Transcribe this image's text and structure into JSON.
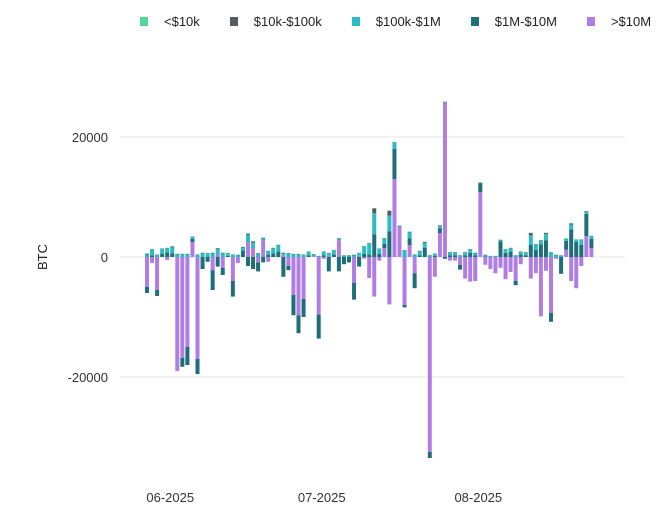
{
  "chart_data": {
    "type": "bar",
    "stacked": true,
    "title": "",
    "xlabel": "",
    "ylabel": "BTC",
    "ylim": [
      -35000,
      27000
    ],
    "yticks": [
      20000,
      0,
      -20000
    ],
    "ytick_labels": [
      "20000",
      "0",
      "-20000"
    ],
    "xticks": [
      "2025-06-01",
      "2025-07-01",
      "2025-08-01"
    ],
    "xtick_labels": [
      "06-2025",
      "07-2025",
      "08-2025"
    ],
    "grid": "horizontal",
    "legend_position": "top",
    "x": [
      "2025-05-27",
      "2025-05-28",
      "2025-05-29",
      "2025-05-30",
      "2025-05-31",
      "2025-06-01",
      "2025-06-02",
      "2025-06-03",
      "2025-06-04",
      "2025-06-05",
      "2025-06-06",
      "2025-06-07",
      "2025-06-08",
      "2025-06-09",
      "2025-06-10",
      "2025-06-11",
      "2025-06-12",
      "2025-06-13",
      "2025-06-14",
      "2025-06-15",
      "2025-06-16",
      "2025-06-17",
      "2025-06-18",
      "2025-06-19",
      "2025-06-20",
      "2025-06-21",
      "2025-06-22",
      "2025-06-23",
      "2025-06-24",
      "2025-06-25",
      "2025-06-26",
      "2025-06-27",
      "2025-06-28",
      "2025-06-29",
      "2025-06-30",
      "2025-07-01",
      "2025-07-02",
      "2025-07-03",
      "2025-07-04",
      "2025-07-05",
      "2025-07-06",
      "2025-07-07",
      "2025-07-08",
      "2025-07-09",
      "2025-07-10",
      "2025-07-11",
      "2025-07-12",
      "2025-07-13",
      "2025-07-14",
      "2025-07-15",
      "2025-07-16",
      "2025-07-17",
      "2025-07-18",
      "2025-07-19",
      "2025-07-20",
      "2025-07-21",
      "2025-07-22",
      "2025-07-23",
      "2025-07-24",
      "2025-07-25",
      "2025-07-26",
      "2025-07-27",
      "2025-07-28",
      "2025-07-29",
      "2025-07-30",
      "2025-07-31",
      "2025-08-01",
      "2025-08-02",
      "2025-08-03",
      "2025-08-04",
      "2025-08-05",
      "2025-08-06",
      "2025-08-07",
      "2025-08-08",
      "2025-08-09",
      "2025-08-10",
      "2025-08-11",
      "2025-08-12",
      "2025-08-13",
      "2025-08-14",
      "2025-08-15",
      "2025-08-16",
      "2025-08-17",
      "2025-08-18",
      "2025-08-19",
      "2025-08-20",
      "2025-08-21",
      "2025-08-22",
      "2025-08-23"
    ],
    "series": [
      {
        "name": ">$10M",
        "color": "#b07ee3",
        "values": [
          -5000,
          -1000,
          -5500,
          0,
          -500,
          0,
          -19000,
          -16800,
          -15000,
          2500,
          -17000,
          0,
          0,
          -2200,
          500,
          -1800,
          0,
          -4000,
          -1000,
          0,
          2500,
          1500,
          -900,
          2800,
          -800,
          0,
          0,
          300,
          -1500,
          -6300,
          -9700,
          -7000,
          0,
          100,
          -9600,
          -300,
          200,
          0,
          2800,
          0,
          0,
          -4300,
          200,
          -300,
          -3500,
          -6600,
          -600,
          1500,
          -7900,
          13000,
          5000,
          -8000,
          2000,
          -2700,
          0,
          0,
          -32500,
          -3300,
          4000,
          25800,
          -600,
          -600,
          -1300,
          -3600,
          -4100,
          -4000,
          10800,
          -1300,
          -2000,
          -2700,
          -1800,
          -3700,
          -2500,
          -4000,
          -1200,
          0,
          -3600,
          -2700,
          -9900,
          -2300,
          -9300,
          -300,
          0,
          1200,
          -4000,
          -5200,
          -1500,
          3500,
          1500
        ]
      },
      {
        "name": "$1M-$10M",
        "color": "#1f6e78",
        "values": [
          -1000,
          300,
          -1000,
          500,
          800,
          600,
          0,
          -1500,
          -3000,
          500,
          -2500,
          -2000,
          -800,
          -3300,
          -1600,
          -1200,
          200,
          -2600,
          0,
          1000,
          -1500,
          -2000,
          -1500,
          -900,
          400,
          600,
          900,
          -3300,
          -700,
          -3400,
          -3000,
          -3000,
          300,
          0,
          -4000,
          300,
          -2400,
          400,
          -2400,
          -1200,
          -900,
          -2800,
          -1600,
          500,
          400,
          3800,
          500,
          700,
          4300,
          5000,
          0,
          -400,
          1100,
          -2500,
          300,
          1500,
          -1000,
          200,
          800,
          -300,
          300,
          300,
          -800,
          300,
          700,
          300,
          1500,
          100,
          0,
          0,
          2600,
          700,
          900,
          -700,
          400,
          300,
          2000,
          1200,
          2100,
          2800,
          -1500,
          0,
          -2800,
          1500,
          4600,
          2500,
          2000,
          3700,
          1500
        ]
      },
      {
        "name": "$100k-$1M",
        "color": "#2bbcc8",
        "values": [
          400,
          900,
          300,
          800,
          600,
          1000,
          400,
          400,
          400,
          300,
          300,
          600,
          500,
          600,
          800,
          600,
          400,
          300,
          300,
          500,
          1200,
          900,
          500,
          300,
          500,
          800,
          1000,
          300,
          500,
          400,
          400,
          300,
          500,
          300,
          100,
          500,
          400,
          600,
          200,
          200,
          200,
          300,
          400,
          1200,
          1800,
          3500,
          800,
          800,
          2600,
          1000,
          100,
          1000,
          1000,
          300,
          600,
          800,
          200,
          300,
          400,
          0,
          400,
          400,
          200,
          400,
          500,
          300,
          0,
          200,
          100,
          100,
          200,
          500,
          500,
          200,
          400,
          400,
          1600,
          800,
          600,
          1000,
          700,
          300,
          200,
          300,
          800,
          300,
          800,
          300,
          400
        ]
      },
      {
        "name": "$10k-$100k",
        "color": "#555a5c",
        "values": [
          150,
          100,
          100,
          100,
          100,
          150,
          100,
          100,
          100,
          100,
          100,
          100,
          100,
          100,
          150,
          100,
          50,
          100,
          50,
          150,
          200,
          200,
          100,
          100,
          100,
          100,
          100,
          100,
          100,
          100,
          100,
          100,
          100,
          50,
          50,
          100,
          50,
          100,
          100,
          50,
          50,
          50,
          50,
          100,
          100,
          800,
          100,
          100,
          800,
          100,
          100,
          100,
          100,
          100,
          100,
          200,
          100,
          50,
          100,
          50,
          100,
          100,
          50,
          100,
          100,
          100,
          100,
          50,
          50,
          50,
          50,
          100,
          100,
          50,
          100,
          100,
          400,
          100,
          100,
          200,
          50,
          50,
          50,
          50,
          200,
          100,
          100,
          100,
          100
        ]
      },
      {
        "name": "<$10k",
        "color": "#52d69b",
        "values": [
          50,
          50,
          50,
          50,
          50,
          50,
          50,
          50,
          50,
          50,
          50,
          50,
          50,
          50,
          50,
          50,
          50,
          50,
          50,
          50,
          50,
          50,
          50,
          50,
          50,
          50,
          50,
          50,
          50,
          50,
          50,
          50,
          50,
          50,
          50,
          50,
          50,
          50,
          50,
          50,
          50,
          50,
          50,
          50,
          50,
          50,
          50,
          50,
          50,
          50,
          50,
          50,
          50,
          50,
          50,
          50,
          50,
          50,
          50,
          50,
          50,
          50,
          50,
          50,
          50,
          50,
          50,
          50,
          50,
          50,
          50,
          50,
          50,
          50,
          50,
          50,
          50,
          50,
          50,
          50,
          50,
          50,
          50,
          50,
          50,
          50,
          50,
          50,
          50
        ]
      }
    ],
    "legend": [
      "<$10k",
      "$10k-$100k",
      "$100k-$1M",
      "$1M-$10M",
      ">$10M"
    ]
  }
}
